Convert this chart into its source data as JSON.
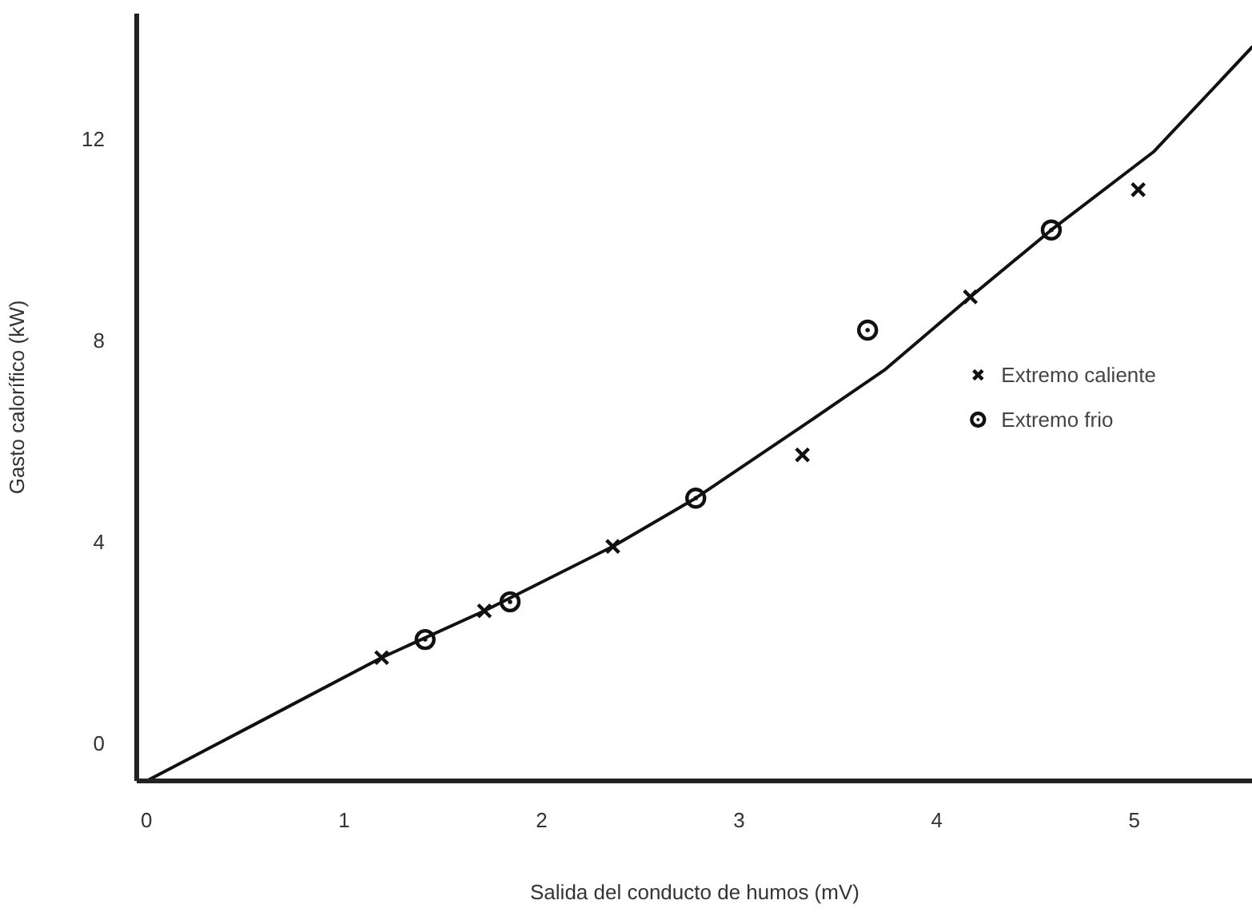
{
  "chart_data": {
    "type": "scatter",
    "xlabel": "Salida del conducto de humos (mV)",
    "ylabel": "Gasto calorífico (kW)",
    "xlim": [
      -0.05,
      5.6
    ],
    "ylim": [
      -0.75,
      14.5
    ],
    "xticks": [
      0,
      1,
      2,
      3,
      4,
      5
    ],
    "yticks": [
      0,
      4,
      8,
      12
    ],
    "grid": false,
    "legend": "right",
    "series": [
      {
        "name": "Extremo caliente",
        "color": "#111111",
        "marker": "cross",
        "x": [
          1.19,
          1.71,
          2.36,
          3.32,
          4.17,
          5.02
        ],
        "values": [
          1.7,
          2.63,
          3.91,
          5.73,
          8.87,
          11.0
        ]
      },
      {
        "name": "Extremo frio",
        "color": "#111111",
        "marker": "circle",
        "x": [
          1.41,
          1.84,
          2.78,
          3.65,
          4.58
        ],
        "values": [
          2.06,
          2.81,
          4.87,
          8.21,
          10.2
        ]
      },
      {
        "type": "line",
        "color": "#111111",
        "marker": "none",
        "line_style": "solid",
        "x": [
          0,
          0.54,
          1.19,
          1.71,
          2.36,
          2.78,
          3.32,
          3.74,
          4.17,
          4.58,
          5.1,
          5.6
        ],
        "values": [
          -0.75,
          0.36,
          1.7,
          2.63,
          3.91,
          4.87,
          6.3,
          7.43,
          8.87,
          10.2,
          11.76,
          13.85
        ]
      }
    ]
  }
}
